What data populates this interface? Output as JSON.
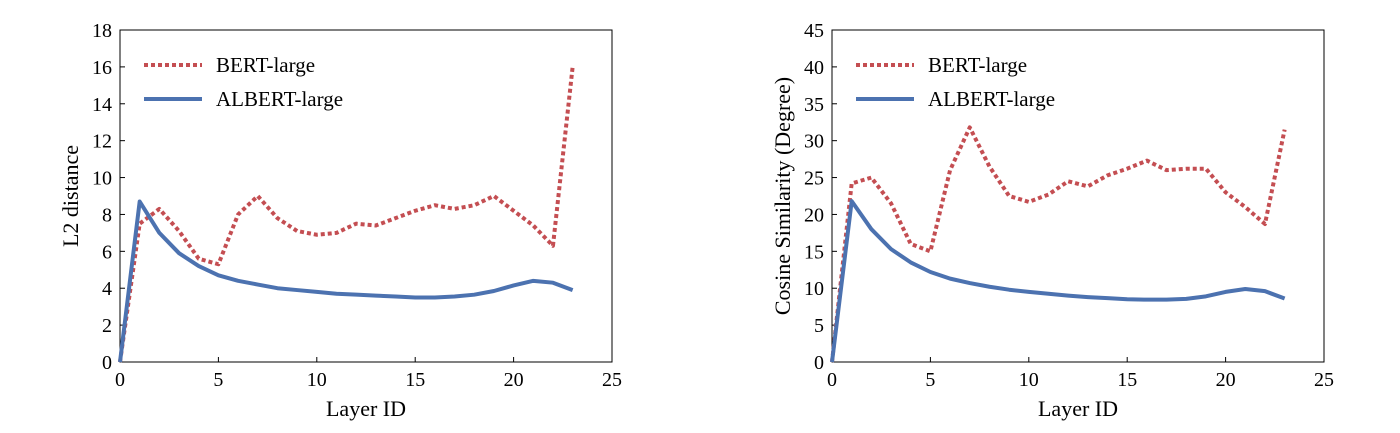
{
  "chart_data": [
    {
      "type": "line",
      "xlabel": "Layer ID",
      "ylabel": "L2 distance",
      "xlim": [
        0,
        25
      ],
      "ylim": [
        0,
        18
      ],
      "xticks": [
        0,
        5,
        10,
        15,
        20,
        25
      ],
      "yticks": [
        0,
        2,
        4,
        6,
        8,
        10,
        12,
        14,
        16,
        18
      ],
      "grid": false,
      "legend_position": "top-left",
      "x": [
        0,
        1,
        2,
        3,
        4,
        5,
        6,
        7,
        8,
        9,
        10,
        11,
        12,
        13,
        14,
        15,
        16,
        17,
        18,
        19,
        20,
        21,
        22,
        23
      ],
      "series": [
        {
          "name": "BERT-large",
          "style": "dotted",
          "color": "#c44e52",
          "values": [
            0,
            7.5,
            8.3,
            7.1,
            5.6,
            5.3,
            8.0,
            9.0,
            7.8,
            7.1,
            6.9,
            7.0,
            7.5,
            7.4,
            7.8,
            8.2,
            8.5,
            8.3,
            8.5,
            9.0,
            8.2,
            7.4,
            6.3,
            16.0
          ]
        },
        {
          "name": "ALBERT-large",
          "style": "solid",
          "color": "#4c72b0",
          "values": [
            0,
            8.7,
            7.0,
            5.9,
            5.2,
            4.7,
            4.4,
            4.2,
            4.0,
            3.9,
            3.8,
            3.7,
            3.65,
            3.6,
            3.55,
            3.5,
            3.5,
            3.55,
            3.65,
            3.85,
            4.15,
            4.4,
            4.3,
            3.9
          ]
        }
      ]
    },
    {
      "type": "line",
      "xlabel": "Layer ID",
      "ylabel": "Cosine Similarity (Degree)",
      "xlim": [
        0,
        25
      ],
      "ylim": [
        0,
        45
      ],
      "xticks": [
        0,
        5,
        10,
        15,
        20,
        25
      ],
      "yticks": [
        0,
        5,
        10,
        15,
        20,
        25,
        30,
        35,
        40,
        45
      ],
      "grid": false,
      "legend_position": "top-left",
      "x": [
        0,
        1,
        2,
        3,
        4,
        5,
        6,
        7,
        8,
        9,
        10,
        11,
        12,
        13,
        14,
        15,
        16,
        17,
        18,
        19,
        20,
        21,
        22,
        23
      ],
      "series": [
        {
          "name": "BERT-large",
          "style": "dotted",
          "color": "#c44e52",
          "values": [
            0,
            24.2,
            25.0,
            21.5,
            16.0,
            15.0,
            26.0,
            31.8,
            26.5,
            22.5,
            21.7,
            22.7,
            24.5,
            23.8,
            25.3,
            26.2,
            27.3,
            26.0,
            26.2,
            26.2,
            23.0,
            21.0,
            18.7,
            31.5
          ]
        },
        {
          "name": "ALBERT-large",
          "style": "solid",
          "color": "#4c72b0",
          "values": [
            0,
            21.8,
            18.0,
            15.3,
            13.5,
            12.2,
            11.3,
            10.7,
            10.2,
            9.8,
            9.5,
            9.25,
            9.0,
            8.8,
            8.65,
            8.5,
            8.45,
            8.45,
            8.55,
            8.9,
            9.5,
            9.9,
            9.6,
            8.6
          ]
        }
      ]
    }
  ]
}
